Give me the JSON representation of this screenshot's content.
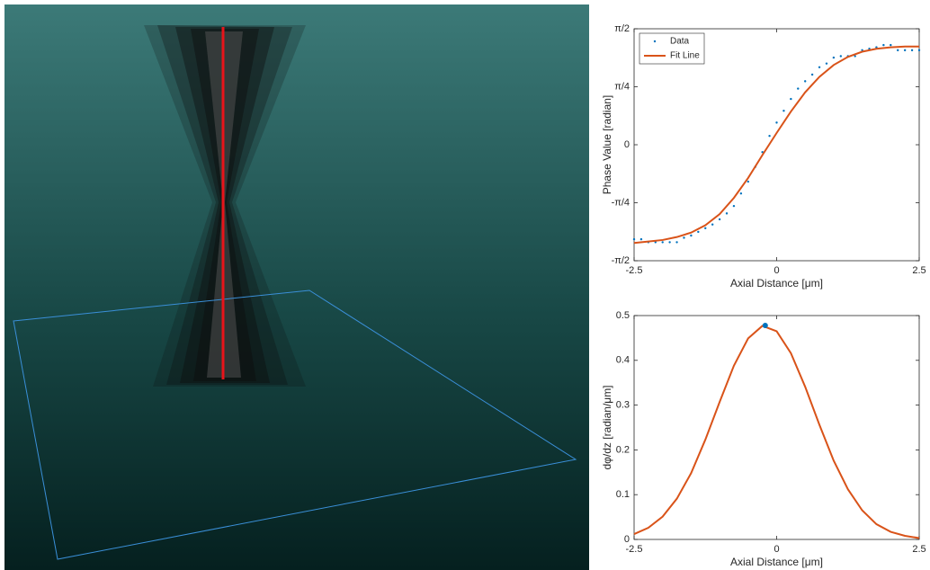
{
  "chart_data": [
    {
      "type": "line",
      "xlabel": "Axial Distance [μm]",
      "ylabel": "Phase Value [radian]",
      "xlim": [
        -2.5,
        2.5
      ],
      "xticks": [
        -2.5,
        0,
        2.5
      ],
      "ylim": [
        -1.5708,
        1.5708
      ],
      "yticks": [
        {
          "value": -1.5708,
          "label": "-π/2"
        },
        {
          "value": -0.7854,
          "label": "-π/4"
        },
        0,
        {
          "value": 0.7854,
          "label": "π/4"
        },
        {
          "value": 1.5708,
          "label": "π/2"
        }
      ],
      "legend": "top-left",
      "series": [
        {
          "name": "Data",
          "color": "#0072bd",
          "mode": "markers",
          "x": [
            -2.5,
            -2.375,
            -2.25,
            -2.125,
            -2.0,
            -1.875,
            -1.75,
            -1.625,
            -1.5,
            -1.375,
            -1.25,
            -1.125,
            -1.0,
            -0.875,
            -0.75,
            -0.625,
            -0.5,
            -0.375,
            -0.25,
            -0.125,
            0,
            0.125,
            0.25,
            0.375,
            0.5,
            0.625,
            0.75,
            0.875,
            1.0,
            1.125,
            1.25,
            1.375,
            1.5,
            1.625,
            1.75,
            1.875,
            2.0,
            2.125,
            2.25,
            2.375,
            2.5
          ],
          "values": [
            -1.28,
            -1.28,
            -1.32,
            -1.32,
            -1.32,
            -1.32,
            -1.32,
            -1.26,
            -1.23,
            -1.18,
            -1.13,
            -1.08,
            -1.01,
            -0.93,
            -0.83,
            -0.66,
            -0.5,
            -0.3,
            -0.1,
            0.12,
            0.3,
            0.46,
            0.62,
            0.76,
            0.86,
            0.95,
            1.05,
            1.1,
            1.18,
            1.2,
            1.2,
            1.2,
            1.28,
            1.3,
            1.32,
            1.35,
            1.35,
            1.28,
            1.28,
            1.28,
            1.28
          ]
        },
        {
          "name": "Fit Line",
          "color": "#d95319",
          "mode": "line",
          "x": [
            -2.5,
            -2.25,
            -2.0,
            -1.75,
            -1.5,
            -1.25,
            -1.0,
            -0.75,
            -0.5,
            -0.25,
            0,
            0.25,
            0.5,
            0.75,
            1.0,
            1.25,
            1.5,
            1.75,
            2.0,
            2.25,
            2.5
          ],
          "values": [
            -1.33,
            -1.31,
            -1.29,
            -1.25,
            -1.19,
            -1.09,
            -0.94,
            -0.72,
            -0.45,
            -0.14,
            0.16,
            0.45,
            0.71,
            0.92,
            1.08,
            1.19,
            1.26,
            1.3,
            1.32,
            1.33,
            1.33
          ]
        }
      ]
    },
    {
      "type": "line",
      "xlabel": "Axial Distance [μm]",
      "ylabel": "dφ/dz [radian/μm]",
      "xlim": [
        -2.5,
        2.5
      ],
      "xticks": [
        -2.5,
        0,
        2.5
      ],
      "ylim": [
        0,
        0.5
      ],
      "yticks": [
        0,
        0.1,
        0.2,
        0.3,
        0.4,
        0.5
      ],
      "series": [
        {
          "color": "#d95319",
          "mode": "line",
          "x": [
            -2.5,
            -2.25,
            -2.0,
            -1.75,
            -1.5,
            -1.25,
            -1.0,
            -0.75,
            -0.5,
            -0.25,
            0,
            0.25,
            0.5,
            0.75,
            1.0,
            1.25,
            1.5,
            1.75,
            2.0,
            2.25,
            2.5
          ],
          "values": [
            0.012,
            0.026,
            0.051,
            0.091,
            0.148,
            0.223,
            0.307,
            0.388,
            0.449,
            0.477,
            0.465,
            0.416,
            0.341,
            0.256,
            0.176,
            0.112,
            0.065,
            0.034,
            0.017,
            0.008,
            0.003
          ]
        },
        {
          "color": "#0072bd",
          "mode": "markers",
          "x": [
            -0.2
          ],
          "values": [
            0.478
          ]
        }
      ]
    }
  ]
}
